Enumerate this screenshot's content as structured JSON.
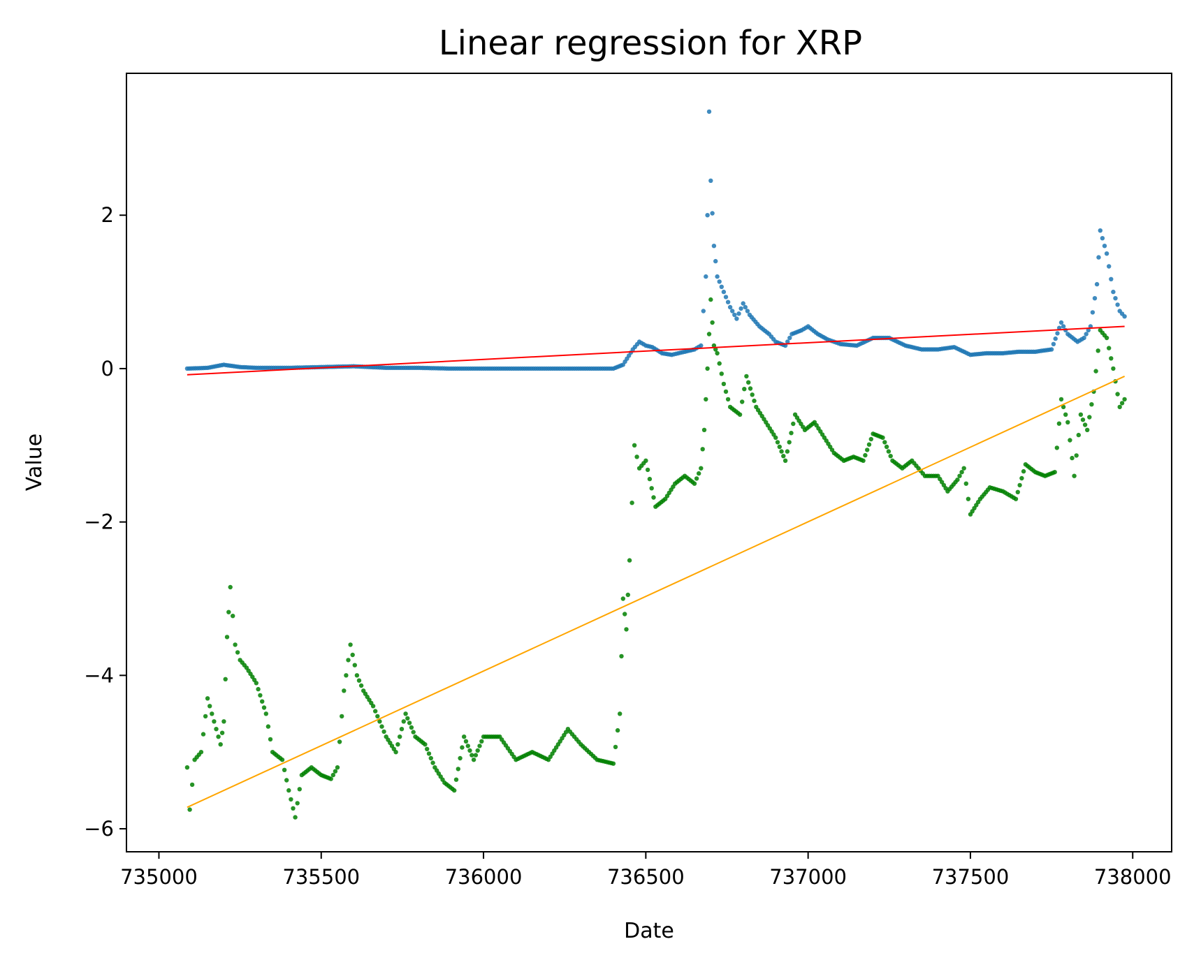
{
  "chart_data": {
    "type": "scatter",
    "title": "Linear regression for XRP",
    "xlabel": "Date",
    "ylabel": "Value",
    "xlim": [
      734900,
      738120
    ],
    "ylim": [
      -6.3,
      3.85
    ],
    "x_ticks": [
      735000,
      735500,
      736000,
      736500,
      737000,
      737500,
      738000
    ],
    "x_tick_labels": [
      "735000",
      "735500",
      "736000",
      "736500",
      "737000",
      "737500",
      "738000"
    ],
    "y_ticks": [
      -6,
      -4,
      -2,
      0,
      2
    ],
    "y_tick_labels": [
      "−6",
      "−4",
      "−2",
      "0",
      "2"
    ],
    "grid": false,
    "legend": "none",
    "series": [
      {
        "kind": "scatter",
        "color": "#1f77b4",
        "points": [
          [
            735087,
            0.0
          ],
          [
            735150,
            0.01
          ],
          [
            735200,
            0.05
          ],
          [
            735250,
            0.02
          ],
          [
            735300,
            0.01
          ],
          [
            735400,
            0.01
          ],
          [
            735500,
            0.02
          ],
          [
            735600,
            0.03
          ],
          [
            735700,
            0.01
          ],
          [
            735800,
            0.01
          ],
          [
            735900,
            0.0
          ],
          [
            736000,
            0.0
          ],
          [
            736100,
            0.0
          ],
          [
            736200,
            0.0
          ],
          [
            736300,
            0.0
          ],
          [
            736400,
            0.0
          ],
          [
            736430,
            0.05
          ],
          [
            736460,
            0.25
          ],
          [
            736480,
            0.35
          ],
          [
            736500,
            0.3
          ],
          [
            736520,
            0.28
          ],
          [
            736550,
            0.2
          ],
          [
            736580,
            0.18
          ],
          [
            736620,
            0.22
          ],
          [
            736650,
            0.25
          ],
          [
            736670,
            0.3
          ],
          [
            736685,
            1.2
          ],
          [
            736690,
            2.0
          ],
          [
            736695,
            3.35
          ],
          [
            736700,
            2.45
          ],
          [
            736710,
            1.6
          ],
          [
            736720,
            1.2
          ],
          [
            736740,
            1.0
          ],
          [
            736760,
            0.8
          ],
          [
            736780,
            0.65
          ],
          [
            736800,
            0.85
          ],
          [
            736820,
            0.7
          ],
          [
            736850,
            0.55
          ],
          [
            736880,
            0.45
          ],
          [
            736900,
            0.35
          ],
          [
            736930,
            0.3
          ],
          [
            736950,
            0.45
          ],
          [
            736980,
            0.5
          ],
          [
            737000,
            0.55
          ],
          [
            737030,
            0.45
          ],
          [
            737060,
            0.38
          ],
          [
            737100,
            0.32
          ],
          [
            737150,
            0.3
          ],
          [
            737200,
            0.4
          ],
          [
            737250,
            0.4
          ],
          [
            737300,
            0.3
          ],
          [
            737350,
            0.25
          ],
          [
            737400,
            0.25
          ],
          [
            737450,
            0.28
          ],
          [
            737500,
            0.18
          ],
          [
            737550,
            0.2
          ],
          [
            737600,
            0.2
          ],
          [
            737650,
            0.22
          ],
          [
            737700,
            0.22
          ],
          [
            737750,
            0.25
          ],
          [
            737780,
            0.6
          ],
          [
            737800,
            0.45
          ],
          [
            737830,
            0.35
          ],
          [
            737850,
            0.4
          ],
          [
            737870,
            0.55
          ],
          [
            737890,
            1.1
          ],
          [
            737900,
            1.8
          ],
          [
            737920,
            1.5
          ],
          [
            737940,
            1.0
          ],
          [
            737960,
            0.75
          ],
          [
            737975,
            0.68
          ]
        ]
      },
      {
        "kind": "scatter",
        "color": "#008000",
        "points": [
          [
            735087,
            -5.2
          ],
          [
            735095,
            -5.75
          ],
          [
            735110,
            -5.1
          ],
          [
            735130,
            -5.0
          ],
          [
            735150,
            -4.3
          ],
          [
            735170,
            -4.6
          ],
          [
            735190,
            -4.9
          ],
          [
            735200,
            -4.6
          ],
          [
            735210,
            -3.5
          ],
          [
            735220,
            -2.85
          ],
          [
            735235,
            -3.6
          ],
          [
            735250,
            -3.8
          ],
          [
            735270,
            -3.9
          ],
          [
            735300,
            -4.1
          ],
          [
            735330,
            -4.5
          ],
          [
            735350,
            -5.0
          ],
          [
            735380,
            -5.1
          ],
          [
            735400,
            -5.5
          ],
          [
            735420,
            -5.85
          ],
          [
            735440,
            -5.3
          ],
          [
            735470,
            -5.2
          ],
          [
            735500,
            -5.3
          ],
          [
            735530,
            -5.35
          ],
          [
            735550,
            -5.2
          ],
          [
            735570,
            -4.2
          ],
          [
            735590,
            -3.6
          ],
          [
            735610,
            -4.0
          ],
          [
            735630,
            -4.2
          ],
          [
            735660,
            -4.4
          ],
          [
            735700,
            -4.8
          ],
          [
            735730,
            -5.0
          ],
          [
            735760,
            -4.5
          ],
          [
            735790,
            -4.8
          ],
          [
            735820,
            -4.9
          ],
          [
            735850,
            -5.2
          ],
          [
            735880,
            -5.4
          ],
          [
            735910,
            -5.5
          ],
          [
            735940,
            -4.8
          ],
          [
            735970,
            -5.1
          ],
          [
            736000,
            -4.8
          ],
          [
            736050,
            -4.8
          ],
          [
            736100,
            -5.1
          ],
          [
            736150,
            -5.0
          ],
          [
            736200,
            -5.1
          ],
          [
            736230,
            -4.9
          ],
          [
            736260,
            -4.7
          ],
          [
            736300,
            -4.9
          ],
          [
            736350,
            -5.1
          ],
          [
            736400,
            -5.15
          ],
          [
            736420,
            -4.5
          ],
          [
            736430,
            -3.0
          ],
          [
            736440,
            -3.4
          ],
          [
            736450,
            -2.5
          ],
          [
            736465,
            -1.0
          ],
          [
            736480,
            -1.3
          ],
          [
            736500,
            -1.2
          ],
          [
            736530,
            -1.8
          ],
          [
            736560,
            -1.7
          ],
          [
            736590,
            -1.5
          ],
          [
            736620,
            -1.4
          ],
          [
            736650,
            -1.5
          ],
          [
            736670,
            -1.3
          ],
          [
            736680,
            -0.8
          ],
          [
            736690,
            0.0
          ],
          [
            736700,
            0.9
          ],
          [
            736710,
            0.3
          ],
          [
            736720,
            0.2
          ],
          [
            736740,
            -0.2
          ],
          [
            736760,
            -0.5
          ],
          [
            736790,
            -0.6
          ],
          [
            736810,
            -0.1
          ],
          [
            736840,
            -0.5
          ],
          [
            736870,
            -0.7
          ],
          [
            736900,
            -0.9
          ],
          [
            736930,
            -1.2
          ],
          [
            736960,
            -0.6
          ],
          [
            736990,
            -0.8
          ],
          [
            737020,
            -0.7
          ],
          [
            737050,
            -0.9
          ],
          [
            737080,
            -1.1
          ],
          [
            737110,
            -1.2
          ],
          [
            737140,
            -1.15
          ],
          [
            737170,
            -1.2
          ],
          [
            737200,
            -0.85
          ],
          [
            737230,
            -0.9
          ],
          [
            737260,
            -1.2
          ],
          [
            737290,
            -1.3
          ],
          [
            737320,
            -1.2
          ],
          [
            737360,
            -1.4
          ],
          [
            737400,
            -1.4
          ],
          [
            737430,
            -1.6
          ],
          [
            737460,
            -1.45
          ],
          [
            737480,
            -1.3
          ],
          [
            737500,
            -1.9
          ],
          [
            737530,
            -1.7
          ],
          [
            737560,
            -1.55
          ],
          [
            737600,
            -1.6
          ],
          [
            737640,
            -1.7
          ],
          [
            737670,
            -1.25
          ],
          [
            737700,
            -1.35
          ],
          [
            737730,
            -1.4
          ],
          [
            737760,
            -1.35
          ],
          [
            737780,
            -0.4
          ],
          [
            737800,
            -0.7
          ],
          [
            737820,
            -1.4
          ],
          [
            737840,
            -0.6
          ],
          [
            737860,
            -0.8
          ],
          [
            737880,
            -0.3
          ],
          [
            737900,
            0.5
          ],
          [
            737920,
            0.4
          ],
          [
            737940,
            0.0
          ],
          [
            737960,
            -0.5
          ],
          [
            737975,
            -0.4
          ]
        ]
      },
      {
        "kind": "line",
        "color": "#ff0000",
        "points": [
          [
            735087,
            -0.08
          ],
          [
            737975,
            0.55
          ]
        ]
      },
      {
        "kind": "line",
        "color": "#ffa500",
        "points": [
          [
            735087,
            -5.72
          ],
          [
            737975,
            -0.1
          ]
        ]
      }
    ]
  }
}
